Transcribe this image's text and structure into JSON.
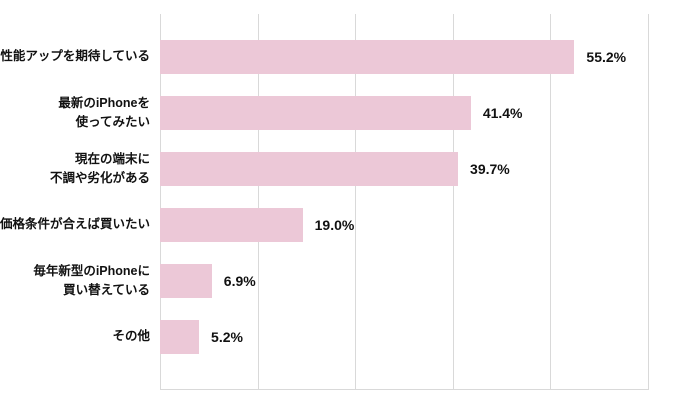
{
  "chart_data": {
    "type": "bar",
    "orientation": "horizontal",
    "title": "",
    "xlabel": "",
    "ylabel": "",
    "categories": [
      "性能アップを期待している",
      "最新のiPhoneを\n使ってみたい",
      "現在の端末に\n不調や劣化がある",
      "価格条件が合えば買いたい",
      "毎年新型のiPhoneに\n買い替えている",
      "その他"
    ],
    "values": [
      55.2,
      41.4,
      39.7,
      19.0,
      6.9,
      5.2
    ],
    "value_labels": [
      "55.2%",
      "41.4%",
      "39.7%",
      "19.0%",
      "6.9%",
      "5.2%"
    ],
    "xlim": [
      0,
      65
    ],
    "grid": true,
    "gridline_count": 6,
    "legend": false,
    "bar_color": "#ecc8d7",
    "grid_color": "#d9d9d9",
    "text_color": "#111111",
    "background": "#ffffff"
  }
}
